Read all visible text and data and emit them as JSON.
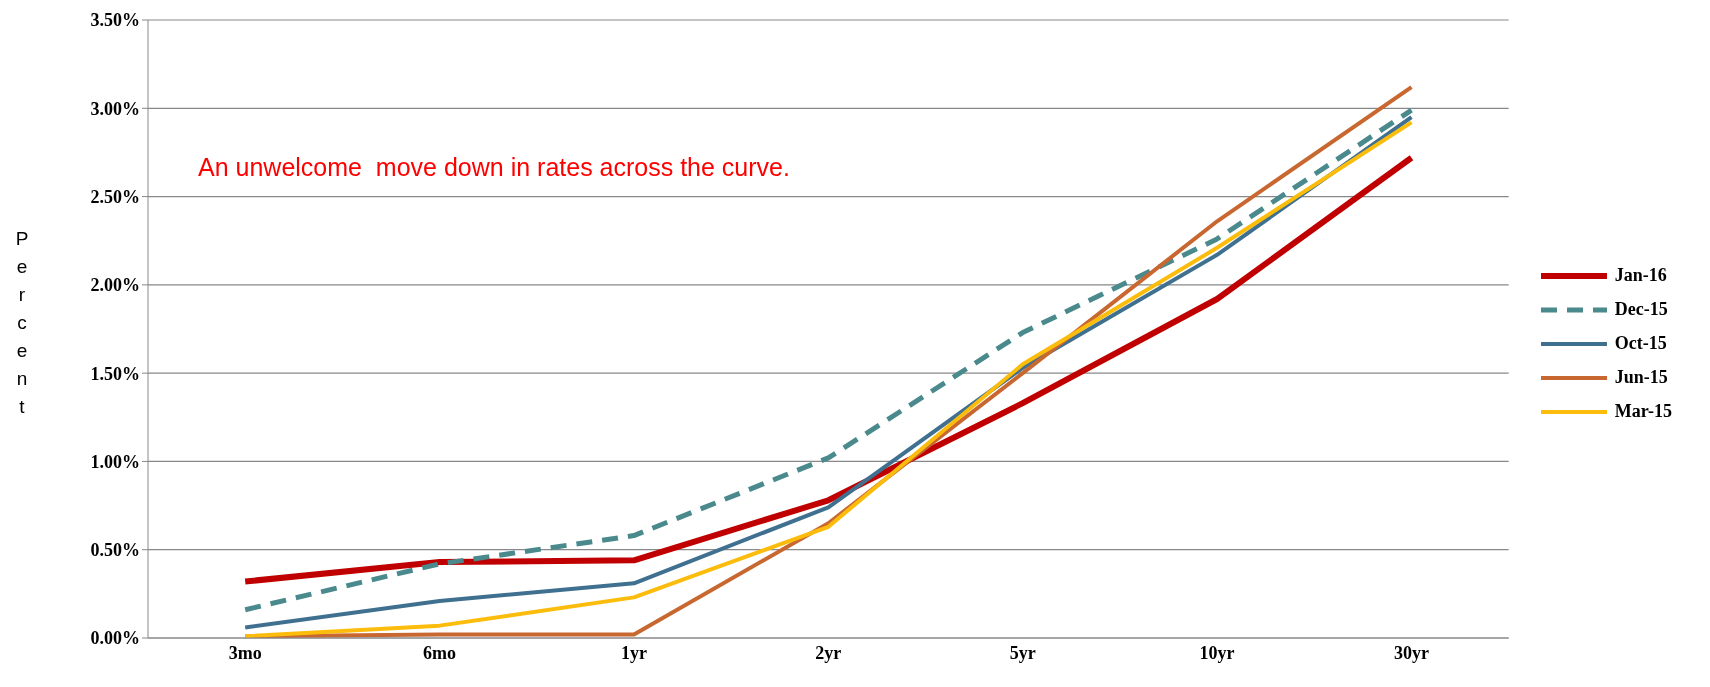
{
  "chart_data": {
    "type": "line",
    "ylabel": "Percent",
    "annotations": [
      "An unwelcome  move down in rates across the curve."
    ],
    "categories": [
      "3mo",
      "6mo",
      "1yr",
      "2yr",
      "5yr",
      "10yr",
      "30yr"
    ],
    "series": [
      {
        "name": "Jan-16",
        "color": "#c00000",
        "values": [
          0.32,
          0.43,
          0.44,
          0.78,
          1.33,
          1.92,
          2.72
        ]
      },
      {
        "name": "Dec-15",
        "color": "#4a8a8c",
        "line_style": "dashed",
        "values": [
          0.16,
          0.42,
          0.58,
          1.02,
          1.73,
          2.26,
          2.99
        ]
      },
      {
        "name": "Oct-15",
        "color": "#3f708f",
        "values": [
          0.06,
          0.21,
          0.31,
          0.74,
          1.53,
          2.17,
          2.95
        ]
      },
      {
        "name": "Jun-15",
        "color": "#c8672f",
        "values": [
          0.01,
          0.02,
          0.02,
          0.65,
          1.5,
          2.36,
          3.12
        ]
      },
      {
        "name": "Mar-15",
        "color": "#fbbc0b",
        "values": [
          0.01,
          0.07,
          0.23,
          0.63,
          1.55,
          2.21,
          2.92
        ]
      }
    ],
    "ylim": [
      0,
      3.5
    ],
    "yticks": [
      {
        "value": 0,
        "label": "0.00%"
      },
      {
        "value": 0.5,
        "label": "0.50%"
      },
      {
        "value": 1,
        "label": "1.00%"
      },
      {
        "value": 1.5,
        "label": "1.50%"
      },
      {
        "value": 2,
        "label": "2.00%"
      },
      {
        "value": 2.5,
        "label": "2.50%"
      },
      {
        "value": 3,
        "label": "3.00%"
      },
      {
        "value": 3.5,
        "label": "3.50%"
      }
    ],
    "grid": "y",
    "legend": "right",
    "marker": "none",
    "line_style": "solid"
  }
}
